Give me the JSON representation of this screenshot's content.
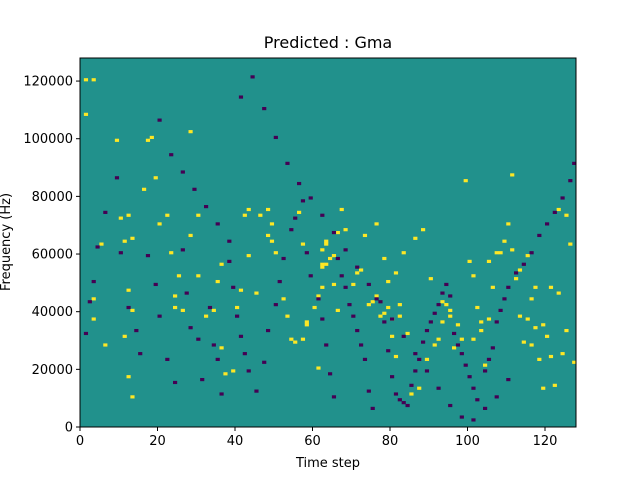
{
  "chart_data": {
    "type": "heatmap",
    "title": "Predicted : Gma",
    "xlabel": "Time step",
    "ylabel": "Frequency (Hz)",
    "xlim": [
      0,
      128
    ],
    "ylim": [
      0,
      128000
    ],
    "xticks": [
      0,
      20,
      40,
      60,
      80,
      100,
      120
    ],
    "yticks": [
      0,
      20000,
      40000,
      60000,
      80000,
      100000,
      120000
    ],
    "colormap": {
      "background": "#21918c",
      "high": "#fde725",
      "low": "#440154"
    },
    "n_time_steps": 128,
    "n_freq_bins": 128,
    "cell_values": {
      "background": 0,
      "high": 1,
      "low": -1
    },
    "cells_high": [
      [
        1,
        120
      ],
      [
        1,
        108
      ],
      [
        3,
        120
      ],
      [
        5,
        63
      ],
      [
        3,
        44
      ],
      [
        3,
        37
      ],
      [
        6,
        28
      ],
      [
        9,
        99
      ],
      [
        10,
        72
      ],
      [
        11,
        64
      ],
      [
        12,
        73
      ],
      [
        13,
        65
      ],
      [
        12,
        47
      ],
      [
        13,
        40
      ],
      [
        11,
        31
      ],
      [
        12,
        17
      ],
      [
        13,
        10
      ],
      [
        16,
        82
      ],
      [
        17,
        99
      ],
      [
        18,
        100
      ],
      [
        19,
        86
      ],
      [
        20,
        70
      ],
      [
        22,
        73
      ],
      [
        23,
        60
      ],
      [
        24,
        41
      ],
      [
        24,
        45
      ],
      [
        25,
        52
      ],
      [
        26,
        40
      ],
      [
        28,
        66
      ],
      [
        30,
        73
      ],
      [
        30,
        52
      ],
      [
        32,
        38
      ],
      [
        34,
        40
      ],
      [
        35,
        50
      ],
      [
        36,
        56
      ],
      [
        36,
        27
      ],
      [
        37,
        18
      ],
      [
        39,
        19
      ],
      [
        40,
        41
      ],
      [
        41,
        47
      ],
      [
        42,
        73
      ],
      [
        43,
        59
      ],
      [
        45,
        46
      ],
      [
        46,
        73
      ],
      [
        48,
        66
      ],
      [
        49,
        64
      ],
      [
        50,
        60
      ],
      [
        52,
        44
      ],
      [
        53,
        38
      ],
      [
        54,
        30
      ],
      [
        55,
        29
      ],
      [
        57,
        30
      ],
      [
        58,
        35
      ],
      [
        58,
        36
      ],
      [
        60,
        41
      ],
      [
        61,
        45
      ],
      [
        61,
        20
      ],
      [
        62,
        48
      ],
      [
        62,
        55
      ],
      [
        62,
        56
      ],
      [
        63,
        56
      ],
      [
        63,
        64
      ],
      [
        64,
        58
      ],
      [
        65,
        49
      ],
      [
        65,
        59
      ],
      [
        66,
        40
      ],
      [
        67,
        75
      ],
      [
        68,
        68
      ],
      [
        70,
        49
      ],
      [
        71,
        53
      ],
      [
        72,
        54
      ],
      [
        75,
        43
      ],
      [
        76,
        45
      ],
      [
        77,
        38
      ],
      [
        78,
        39
      ],
      [
        79,
        41
      ],
      [
        79,
        50
      ],
      [
        80,
        31
      ],
      [
        80,
        37
      ],
      [
        81,
        24
      ],
      [
        82,
        38
      ],
      [
        82,
        42
      ],
      [
        84,
        32
      ],
      [
        85,
        11
      ],
      [
        87,
        13
      ],
      [
        89,
        23
      ],
      [
        91,
        28
      ],
      [
        92,
        30
      ],
      [
        93,
        36
      ],
      [
        94,
        42
      ],
      [
        95,
        40
      ],
      [
        96,
        27
      ],
      [
        99,
        85
      ],
      [
        100,
        57
      ],
      [
        101,
        52
      ],
      [
        102,
        41
      ],
      [
        103,
        36
      ],
      [
        104,
        21
      ],
      [
        105,
        37
      ],
      [
        106,
        48
      ],
      [
        108,
        60
      ],
      [
        109,
        64
      ],
      [
        110,
        70
      ],
      [
        111,
        61
      ],
      [
        112,
        51
      ],
      [
        113,
        38
      ],
      [
        114,
        29
      ],
      [
        115,
        37
      ],
      [
        116,
        28
      ],
      [
        117,
        34
      ],
      [
        118,
        23
      ],
      [
        119,
        13
      ],
      [
        120,
        31
      ],
      [
        121,
        24
      ],
      [
        122,
        14
      ],
      [
        123,
        46
      ],
      [
        124,
        25
      ],
      [
        125,
        33
      ],
      [
        126,
        63
      ],
      [
        127,
        22
      ],
      [
        28,
        102
      ],
      [
        43,
        75
      ],
      [
        48,
        75
      ],
      [
        49,
        70
      ],
      [
        56,
        74
      ],
      [
        57,
        63
      ],
      [
        62,
        61
      ],
      [
        63,
        63
      ],
      [
        66,
        67
      ],
      [
        73,
        66
      ],
      [
        74,
        42
      ],
      [
        76,
        70
      ],
      [
        78,
        58
      ],
      [
        81,
        53
      ],
      [
        83,
        60
      ],
      [
        86,
        65
      ],
      [
        88,
        68
      ],
      [
        90,
        51
      ],
      [
        93,
        43
      ],
      [
        95,
        38
      ],
      [
        97,
        35
      ],
      [
        98,
        30
      ],
      [
        101,
        30
      ],
      [
        103,
        33
      ],
      [
        105,
        57
      ],
      [
        107,
        60
      ],
      [
        111,
        87
      ],
      [
        113,
        54
      ],
      [
        115,
        59
      ],
      [
        116,
        44
      ],
      [
        117,
        48
      ],
      [
        119,
        35
      ],
      [
        121,
        48
      ],
      [
        123,
        75
      ],
      [
        125,
        73
      ]
    ],
    "cells_low": [
      [
        1,
        32
      ],
      [
        2,
        43
      ],
      [
        3,
        50
      ],
      [
        4,
        62
      ],
      [
        6,
        74
      ],
      [
        9,
        86
      ],
      [
        10,
        60
      ],
      [
        12,
        41
      ],
      [
        14,
        33
      ],
      [
        15,
        25
      ],
      [
        17,
        59
      ],
      [
        19,
        49
      ],
      [
        20,
        38
      ],
      [
        22,
        23
      ],
      [
        24,
        15
      ],
      [
        26,
        61
      ],
      [
        27,
        46
      ],
      [
        28,
        34
      ],
      [
        30,
        30
      ],
      [
        31,
        16
      ],
      [
        33,
        41
      ],
      [
        34,
        28
      ],
      [
        35,
        23
      ],
      [
        36,
        11
      ],
      [
        38,
        57
      ],
      [
        39,
        48
      ],
      [
        40,
        38
      ],
      [
        41,
        31
      ],
      [
        42,
        25
      ],
      [
        43,
        19
      ],
      [
        45,
        12
      ],
      [
        47,
        22
      ],
      [
        48,
        33
      ],
      [
        50,
        42
      ],
      [
        51,
        50
      ],
      [
        52,
        58
      ],
      [
        54,
        68
      ],
      [
        55,
        72
      ],
      [
        57,
        78
      ],
      [
        58,
        60
      ],
      [
        59,
        52
      ],
      [
        61,
        44
      ],
      [
        62,
        37
      ],
      [
        63,
        28
      ],
      [
        64,
        18
      ],
      [
        65,
        10
      ],
      [
        66,
        58
      ],
      [
        67,
        52
      ],
      [
        68,
        48
      ],
      [
        69,
        42
      ],
      [
        70,
        38
      ],
      [
        71,
        33
      ],
      [
        72,
        28
      ],
      [
        73,
        23
      ],
      [
        74,
        12
      ],
      [
        75,
        6
      ],
      [
        76,
        44
      ],
      [
        78,
        36
      ],
      [
        79,
        26
      ],
      [
        80,
        17
      ],
      [
        81,
        11
      ],
      [
        82,
        9
      ],
      [
        83,
        8
      ],
      [
        84,
        7
      ],
      [
        85,
        14
      ],
      [
        86,
        19
      ],
      [
        87,
        23
      ],
      [
        88,
        29
      ],
      [
        89,
        33
      ],
      [
        90,
        36
      ],
      [
        91,
        39
      ],
      [
        92,
        42
      ],
      [
        93,
        46
      ],
      [
        94,
        49
      ],
      [
        95,
        45
      ],
      [
        96,
        32
      ],
      [
        97,
        28
      ],
      [
        98,
        25
      ],
      [
        99,
        21
      ],
      [
        100,
        17
      ],
      [
        101,
        13
      ],
      [
        102,
        9
      ],
      [
        104,
        19
      ],
      [
        105,
        23
      ],
      [
        106,
        27
      ],
      [
        107,
        36
      ],
      [
        108,
        40
      ],
      [
        109,
        44
      ],
      [
        110,
        48
      ],
      [
        112,
        53
      ],
      [
        114,
        56
      ],
      [
        116,
        60
      ],
      [
        118,
        66
      ],
      [
        120,
        70
      ],
      [
        122,
        74
      ],
      [
        124,
        79
      ],
      [
        126,
        85
      ],
      [
        127,
        91
      ],
      [
        20,
        106
      ],
      [
        23,
        94
      ],
      [
        26,
        88
      ],
      [
        29,
        82
      ],
      [
        32,
        76
      ],
      [
        35,
        70
      ],
      [
        38,
        64
      ],
      [
        41,
        114
      ],
      [
        44,
        121
      ],
      [
        47,
        110
      ],
      [
        50,
        100
      ],
      [
        53,
        91
      ],
      [
        56,
        84
      ],
      [
        59,
        79
      ],
      [
        62,
        73
      ],
      [
        65,
        67
      ],
      [
        68,
        61
      ],
      [
        71,
        55
      ],
      [
        74,
        49
      ],
      [
        77,
        43
      ],
      [
        80,
        37
      ],
      [
        83,
        31
      ],
      [
        86,
        25
      ],
      [
        89,
        19
      ],
      [
        92,
        13
      ],
      [
        95,
        7
      ],
      [
        98,
        3
      ],
      [
        101,
        2
      ],
      [
        104,
        6
      ],
      [
        107,
        10
      ],
      [
        110,
        16
      ]
    ]
  }
}
